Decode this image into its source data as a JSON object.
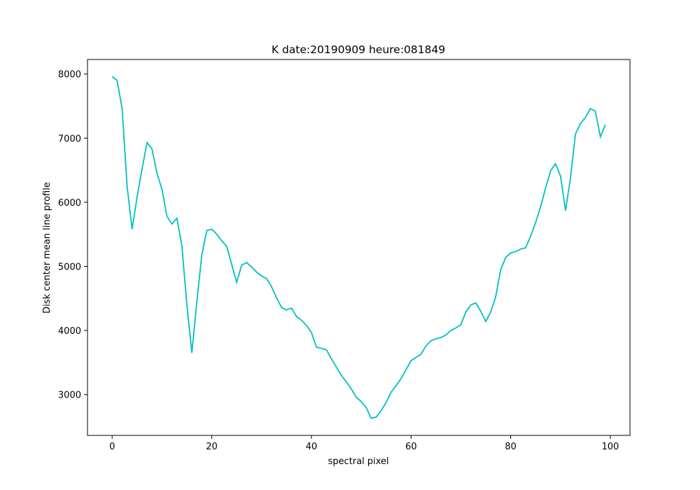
{
  "chart_data": {
    "type": "line",
    "title": "K date:20190909 heure:081849",
    "x_label": "spectral pixel",
    "y_label": "Disk center mean line profile",
    "x": [
      0,
      1,
      2,
      3,
      4,
      5,
      6,
      7,
      8,
      9,
      10,
      11,
      12,
      13,
      14,
      15,
      16,
      17,
      18,
      19,
      20,
      21,
      22,
      23,
      24,
      25,
      26,
      27,
      28,
      29,
      30,
      31,
      32,
      33,
      34,
      35,
      36,
      37,
      38,
      39,
      40,
      41,
      42,
      43,
      44,
      45,
      46,
      47,
      48,
      49,
      50,
      51,
      52,
      53,
      54,
      55,
      56,
      57,
      58,
      59,
      60,
      61,
      62,
      63,
      64,
      65,
      66,
      67,
      68,
      69,
      70,
      71,
      72,
      73,
      74,
      75,
      76,
      77,
      78,
      79,
      80,
      81,
      82,
      83,
      84,
      85,
      86,
      87,
      88,
      89,
      90,
      91,
      92,
      93,
      94,
      95,
      96,
      97,
      98,
      99
    ],
    "series": [
      {
        "color": "#00bfbf",
        "values": [
          7960,
          7900,
          7460,
          6250,
          5580,
          6080,
          6520,
          6930,
          6830,
          6450,
          6200,
          5780,
          5660,
          5750,
          5320,
          4400,
          3650,
          4450,
          5180,
          5560,
          5580,
          5500,
          5400,
          5310,
          5030,
          4750,
          5020,
          5060,
          4990,
          4910,
          4850,
          4810,
          4680,
          4510,
          4360,
          4320,
          4350,
          4220,
          4160,
          4080,
          3970,
          3740,
          3720,
          3700,
          3560,
          3430,
          3300,
          3200,
          3090,
          2960,
          2890,
          2800,
          2630,
          2650,
          2750,
          2880,
          3040,
          3140,
          3250,
          3390,
          3530,
          3580,
          3630,
          3760,
          3840,
          3870,
          3890,
          3930,
          4000,
          4040,
          4090,
          4290,
          4400,
          4430,
          4300,
          4140,
          4290,
          4530,
          4950,
          5140,
          5210,
          5230,
          5270,
          5290,
          5470,
          5680,
          5930,
          6220,
          6490,
          6600,
          6410,
          5870,
          6380,
          7060,
          7230,
          7320,
          7460,
          7420,
          7020,
          7210
        ]
      }
    ],
    "xlim": [
      -4.95,
      103.95
    ],
    "xticks": [
      0,
      20,
      40,
      60,
      80,
      100
    ],
    "ylim": [
      2364,
      8226
    ],
    "yticks": [
      3000,
      4000,
      5000,
      6000,
      7000,
      8000
    ],
    "grid": false
  }
}
